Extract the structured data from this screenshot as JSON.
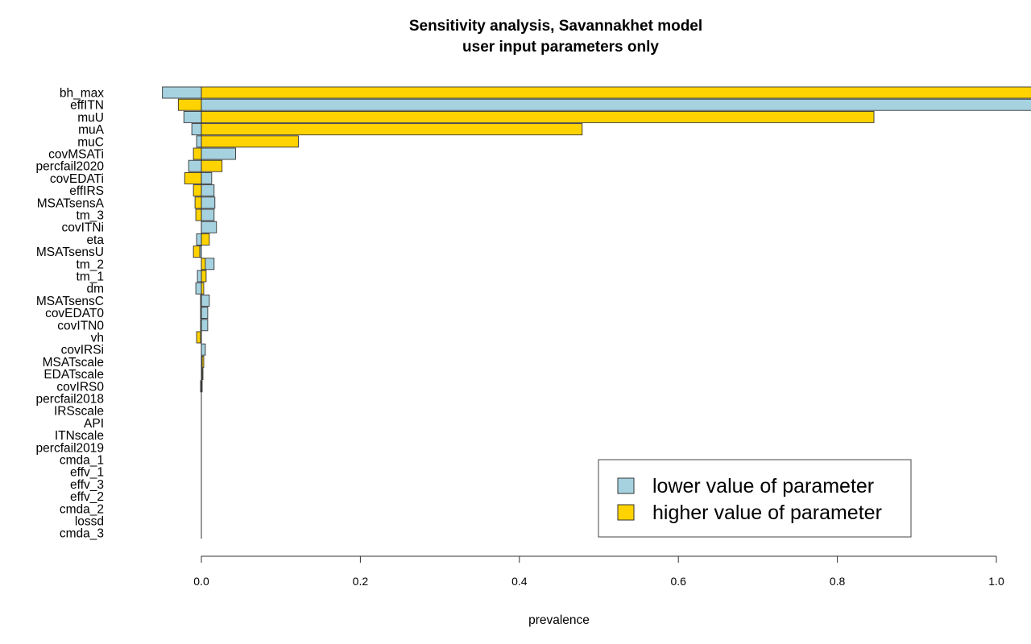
{
  "chart_data": {
    "type": "bar",
    "orientation": "horizontal",
    "title": "Sensitivity analysis, Savannakhet model",
    "subtitle": "user input parameters only",
    "xlabel": "prevalence",
    "ylabel": "",
    "xlim": [
      -0.05,
      1.0
    ],
    "xticks": [
      0.0,
      0.2,
      0.4,
      0.6,
      0.8,
      1.0
    ],
    "xtick_labels": [
      "0.0",
      "0.2",
      "0.4",
      "0.6",
      "0.8",
      "1.0"
    ],
    "grid": false,
    "legend_position": "bottom-right",
    "categories": [
      "bh_max",
      "effITN",
      "muU",
      "muA",
      "muC",
      "covMSATi",
      "percfail2020",
      "covEDATi",
      "effIRS",
      "MSATsensA",
      "tm_3",
      "covITNi",
      "eta",
      "MSATsensU",
      "tm_2",
      "tm_1",
      "dm",
      "MSATsensC",
      "covEDAT0",
      "covITN0",
      "vh",
      "covIRSi",
      "MSATscale",
      "EDATscale",
      "covIRS0",
      "percfail2018",
      "IRSscale",
      "API",
      "ITNscale",
      "percfail2019",
      "cmda_1",
      "effv_1",
      "effv_3",
      "effv_2",
      "cmda_2",
      "lossd",
      "cmda_3"
    ],
    "series": [
      {
        "name": "lower value of parameter",
        "color": "#a6d2e0",
        "values": [
          -0.049,
          1.05,
          -0.022,
          -0.012,
          -0.006,
          0.043,
          -0.016,
          0.013,
          0.016,
          0.017,
          0.016,
          0.019,
          -0.006,
          -0.002,
          0.016,
          -0.005,
          -0.007,
          0.01,
          0.008,
          0.008,
          -0.001,
          0.005,
          0.001,
          0.001,
          0.001,
          0.0,
          0.0,
          0.0,
          0.0,
          0.0,
          0.0,
          0.0,
          0.0,
          0.0,
          0.0,
          0.0,
          0.0
        ]
      },
      {
        "name": "higher value of parameter",
        "color": "#ffd300",
        "values": [
          1.05,
          -0.029,
          0.846,
          0.479,
          0.122,
          -0.01,
          0.026,
          -0.021,
          -0.01,
          -0.008,
          -0.007,
          0.0,
          0.01,
          -0.01,
          0.005,
          0.006,
          0.003,
          -0.001,
          -0.001,
          -0.001,
          -0.006,
          0.0,
          0.003,
          0.002,
          -0.001,
          0.0,
          0.0,
          0.0,
          0.0,
          0.0,
          0.0,
          0.0,
          0.0,
          0.0,
          0.0,
          0.0,
          0.0
        ]
      }
    ]
  }
}
